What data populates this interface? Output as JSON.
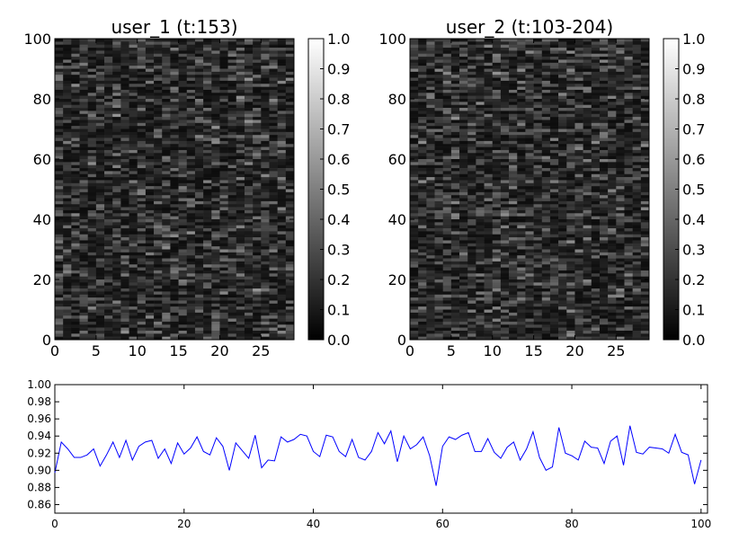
{
  "chart_data": [
    {
      "type": "heatmap",
      "title": "user_1 (t:153)",
      "colormap": "gray",
      "x_ticks": [
        0,
        5,
        10,
        15,
        20,
        25
      ],
      "xlim": [
        0,
        29
      ],
      "y_ticks": [
        0,
        20,
        40,
        60,
        80,
        100
      ],
      "ylim": [
        0,
        100
      ],
      "colorbar_ticks": [
        "0.0",
        "0.1",
        "0.2",
        "0.3",
        "0.4",
        "0.5",
        "0.6",
        "0.7",
        "0.8",
        "0.9",
        "1.0"
      ],
      "value_range": [
        0.0,
        0.6
      ],
      "typical_value": 0.2,
      "grid": false
    },
    {
      "type": "heatmap",
      "title": "user_2 (t:103-204)",
      "colormap": "gray",
      "x_ticks": [
        0,
        5,
        10,
        15,
        20,
        25
      ],
      "xlim": [
        0,
        29
      ],
      "y_ticks": [
        0,
        20,
        40,
        60,
        80,
        100
      ],
      "ylim": [
        0,
        100
      ],
      "colorbar_ticks": [
        "0.0",
        "0.1",
        "0.2",
        "0.3",
        "0.4",
        "0.5",
        "0.6",
        "0.7",
        "0.8",
        "0.9",
        "1.0"
      ],
      "value_range": [
        0.0,
        0.6
      ],
      "typical_value": 0.2,
      "grid": false
    },
    {
      "type": "line",
      "color": "#0000ff",
      "xlim": [
        0,
        101
      ],
      "ylim": [
        0.85,
        1.0
      ],
      "x_ticks": [
        0,
        20,
        40,
        60,
        80,
        100
      ],
      "y_ticks": [
        "0.86",
        "0.88",
        "0.90",
        "0.92",
        "0.94",
        "0.96",
        "0.98",
        "1.00"
      ],
      "grid": false,
      "values": [
        0.897,
        0.933,
        0.925,
        0.915,
        0.915,
        0.918,
        0.925,
        0.905,
        0.918,
        0.933,
        0.915,
        0.935,
        0.912,
        0.928,
        0.933,
        0.935,
        0.914,
        0.925,
        0.908,
        0.932,
        0.919,
        0.926,
        0.939,
        0.922,
        0.918,
        0.938,
        0.928,
        0.9,
        0.932,
        0.923,
        0.914,
        0.941,
        0.903,
        0.912,
        0.911,
        0.939,
        0.933,
        0.936,
        0.942,
        0.94,
        0.922,
        0.916,
        0.941,
        0.939,
        0.922,
        0.916,
        0.936,
        0.915,
        0.912,
        0.922,
        0.944,
        0.931,
        0.946,
        0.91,
        0.94,
        0.925,
        0.93,
        0.939,
        0.917,
        0.882,
        0.928,
        0.939,
        0.936,
        0.941,
        0.944,
        0.922,
        0.922,
        0.937,
        0.921,
        0.914,
        0.927,
        0.933,
        0.912,
        0.925,
        0.945,
        0.915,
        0.9,
        0.904,
        0.95,
        0.92,
        0.917,
        0.912,
        0.934,
        0.927,
        0.926,
        0.908,
        0.934,
        0.94,
        0.906,
        0.952,
        0.921,
        0.919,
        0.927,
        0.926,
        0.925,
        0.92,
        0.942,
        0.921,
        0.918,
        0.884,
        0.912
      ]
    }
  ]
}
